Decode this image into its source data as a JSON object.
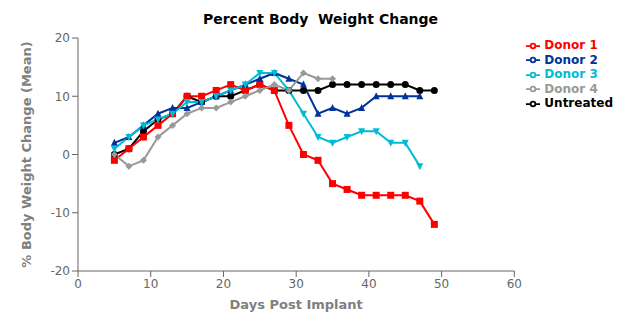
{
  "chart_data": {
    "type": "line",
    "title": "Percent Body  Weight Change",
    "xlabel": "Days Post Implant",
    "ylabel": "% Body  Weight Change (Mean)",
    "xlim": [
      0,
      60
    ],
    "ylim": [
      -20,
      20
    ],
    "xticks": [
      0,
      10,
      20,
      30,
      40,
      50,
      60
    ],
    "yticks": [
      -20,
      -10,
      0,
      10,
      20
    ],
    "grid": false,
    "legend": "right",
    "series": [
      {
        "name": "Untreated",
        "color": "#000000",
        "marker": "circle",
        "x": [
          5,
          7,
          9,
          11,
          13,
          15,
          17,
          19,
          21,
          23,
          25,
          27,
          29,
          31,
          33,
          35,
          37,
          39,
          41,
          43,
          45,
          47,
          49
        ],
        "values": [
          0,
          1,
          4,
          6,
          7,
          10,
          9,
          10,
          10,
          11,
          12,
          11,
          11,
          11,
          11,
          12,
          12,
          12,
          12,
          12,
          12,
          11,
          11
        ]
      },
      {
        "name": "Donor 1",
        "color": "#ff0000",
        "marker": "square",
        "x": [
          5,
          7,
          9,
          11,
          13,
          15,
          17,
          19,
          21,
          23,
          25,
          27,
          29,
          31,
          33,
          35,
          37,
          39,
          41,
          43,
          45,
          47,
          49
        ],
        "values": [
          -1,
          1,
          3,
          5,
          7,
          10,
          10,
          11,
          12,
          11,
          12,
          11,
          5,
          0,
          -1,
          -5,
          -6,
          -7,
          -7,
          -7,
          -7,
          -8,
          -12
        ]
      },
      {
        "name": "Donor 2",
        "color": "#003399",
        "marker": "triangle-up",
        "x": [
          5,
          7,
          9,
          11,
          13,
          15,
          17,
          19,
          21,
          23,
          25,
          27,
          29,
          31,
          33,
          35,
          37,
          39,
          41,
          43,
          45,
          47
        ],
        "values": [
          2,
          3,
          5,
          7,
          8,
          8,
          9,
          10,
          11,
          12,
          13,
          14,
          13,
          12,
          7,
          8,
          7,
          8,
          10,
          10,
          10,
          10
        ]
      },
      {
        "name": "Donor 3",
        "color": "#00bcd4",
        "marker": "triangle-down",
        "x": [
          5,
          7,
          9,
          11,
          13,
          15,
          17,
          19,
          21,
          23,
          25,
          27,
          29,
          31,
          33,
          35,
          37,
          39,
          41,
          43,
          45,
          47
        ],
        "values": [
          1,
          3,
          5,
          6,
          7,
          9,
          9,
          10,
          11,
          12,
          14,
          14,
          11,
          7,
          3,
          2,
          3,
          4,
          4,
          2,
          2,
          -2
        ]
      },
      {
        "name": "Donor 4",
        "color": "#999999",
        "marker": "diamond",
        "x": [
          5,
          7,
          9,
          11,
          13,
          15,
          17,
          19,
          21,
          23,
          25,
          27,
          29,
          31,
          33,
          35
        ],
        "values": [
          0,
          -2,
          -1,
          3,
          5,
          7,
          8,
          8,
          9,
          10,
          11,
          12,
          11,
          14,
          13,
          13
        ]
      }
    ]
  }
}
